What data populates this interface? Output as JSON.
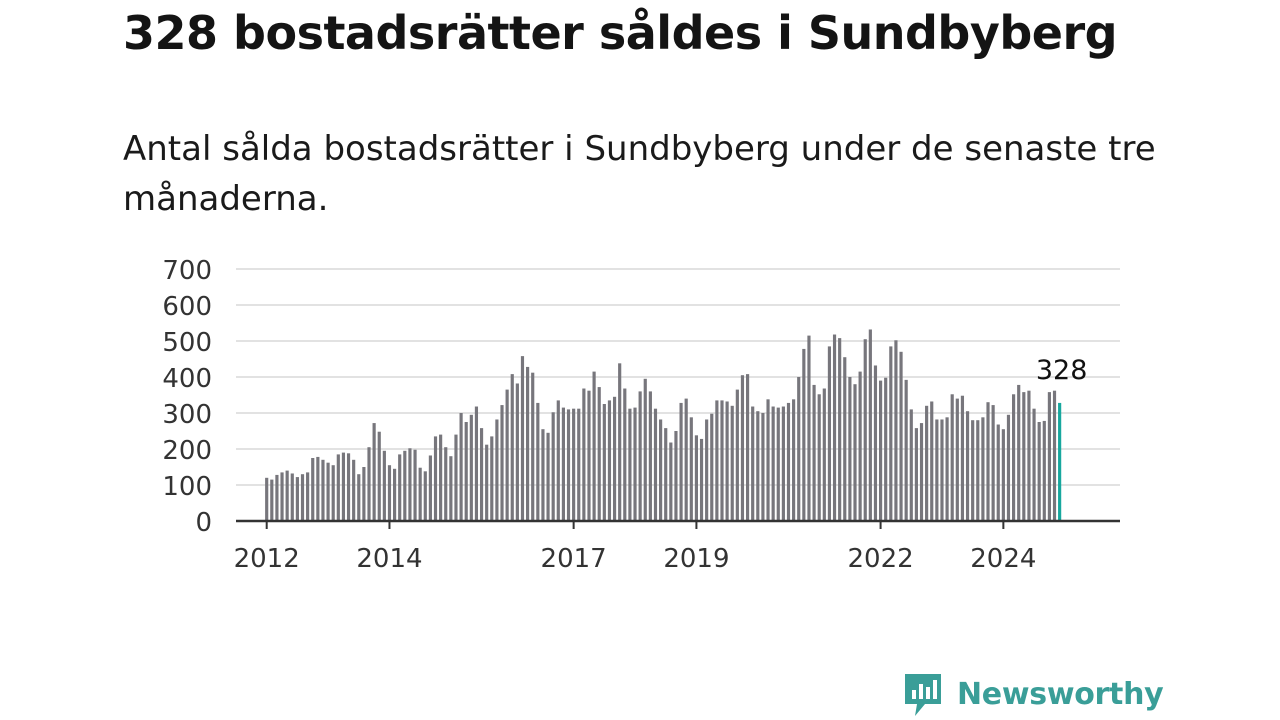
{
  "title": "328 bostadsrätter såldes i Sundbyberg",
  "subtitle": "Antal sålda bostadsrätter i Sundbyberg under de senaste tre månaderna.",
  "brand": {
    "name": "Newsworthy",
    "color": "#3a9e98",
    "icon": "newsworthy-logo-icon"
  },
  "colors": {
    "bar": "#77767c",
    "highlight": "#17a79e",
    "grid": "#d9d9d9",
    "axis": "#333333"
  },
  "chart_data": {
    "type": "bar",
    "title": "328 bostadsrätter såldes i Sundbyberg",
    "xlabel": "",
    "ylabel": "",
    "ylim": [
      0,
      700
    ],
    "yticks": [
      0,
      100,
      200,
      300,
      400,
      500,
      600,
      700
    ],
    "xrange": [
      2011.5,
      2025.9
    ],
    "xticks": [
      {
        "label": "2012",
        "year": 2012
      },
      {
        "label": "2014",
        "year": 2014
      },
      {
        "label": "2017",
        "year": 2017
      },
      {
        "label": "2019",
        "year": 2019
      },
      {
        "label": "2022",
        "year": 2022
      },
      {
        "label": "2024",
        "year": 2024
      }
    ],
    "grid": true,
    "legend": "none",
    "first_period": "2012-01",
    "frequency": "monthly",
    "values": [
      120,
      115,
      128,
      135,
      140,
      132,
      122,
      130,
      135,
      175,
      178,
      170,
      162,
      155,
      185,
      190,
      188,
      170,
      130,
      150,
      205,
      272,
      248,
      195,
      155,
      145,
      185,
      195,
      202,
      198,
      148,
      138,
      182,
      235,
      240,
      205,
      180,
      240,
      300,
      275,
      295,
      318,
      258,
      212,
      235,
      282,
      322,
      365,
      408,
      382,
      458,
      428,
      412,
      328,
      255,
      245,
      302,
      335,
      315,
      310,
      312,
      312,
      368,
      362,
      415,
      372,
      325,
      335,
      345,
      438,
      368,
      312,
      315,
      360,
      395,
      360,
      312,
      282,
      258,
      218,
      250,
      328,
      340,
      288,
      238,
      228,
      282,
      298,
      335,
      335,
      332,
      320,
      365,
      405,
      408,
      318,
      305,
      300,
      338,
      318,
      315,
      318,
      328,
      338,
      400,
      478,
      515,
      378,
      352,
      368,
      485,
      518,
      508,
      455,
      400,
      380,
      415,
      505,
      532,
      432,
      390,
      398,
      485,
      502,
      470,
      392,
      310,
      258,
      272,
      320,
      332,
      282,
      282,
      288,
      352,
      340,
      348,
      305,
      280,
      280,
      288,
      330,
      322,
      268,
      255,
      295,
      352,
      378,
      358,
      362,
      312,
      275,
      278,
      358,
      362,
      328
    ],
    "highlight_last": true,
    "annotation": {
      "text": "328"
    }
  }
}
